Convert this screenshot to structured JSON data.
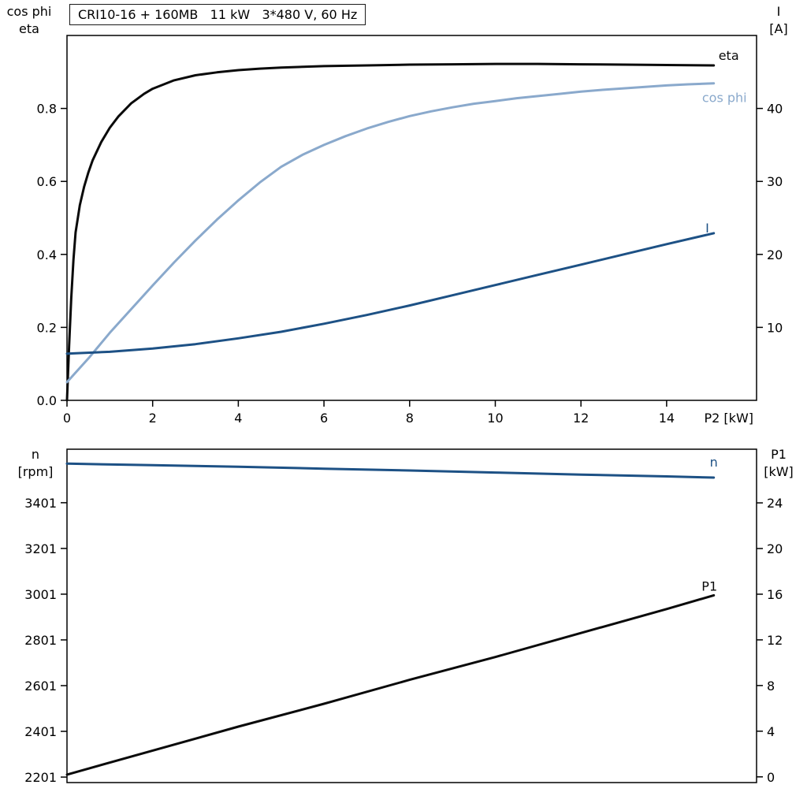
{
  "colors": {
    "background": "#ffffff",
    "axis": "#000000",
    "black": "#0a0a0a",
    "dark_blue": "#1d5185",
    "light_blue": "#8aa9cc"
  },
  "chart_data": [
    {
      "type": "line",
      "title": "CRI10-16 + 160MB   11 kW   3*480 V, 60 Hz",
      "grid": "off",
      "x_axis": {
        "label": "P2 [kW]",
        "min": 0,
        "max": 16.1,
        "ticks": [
          0,
          2,
          4,
          6,
          8,
          10,
          12,
          14
        ]
      },
      "left_axis": {
        "label_lines": [
          "cos phi",
          "eta"
        ],
        "min": 0,
        "max": 1.0,
        "decimals": 1,
        "ticks": [
          0.0,
          0.2,
          0.4,
          0.6,
          0.8
        ]
      },
      "right_axis": {
        "label_lines": [
          "I",
          "[A]"
        ],
        "min": 0,
        "max": 50,
        "ticks": [
          10,
          20,
          30,
          40
        ]
      },
      "series": [
        {
          "name": "eta",
          "label": "eta",
          "axis": "left",
          "color_key": "black",
          "label_at": [
            15.45,
            0.933
          ],
          "points": [
            [
              0,
              0
            ],
            [
              0.05,
              0.15
            ],
            [
              0.1,
              0.28
            ],
            [
              0.15,
              0.385
            ],
            [
              0.2,
              0.46
            ],
            [
              0.3,
              0.535
            ],
            [
              0.4,
              0.585
            ],
            [
              0.5,
              0.625
            ],
            [
              0.6,
              0.658
            ],
            [
              0.8,
              0.708
            ],
            [
              1,
              0.747
            ],
            [
              1.2,
              0.778
            ],
            [
              1.5,
              0.814
            ],
            [
              1.8,
              0.84
            ],
            [
              2,
              0.854
            ],
            [
              2.5,
              0.877
            ],
            [
              3,
              0.891
            ],
            [
              3.5,
              0.899
            ],
            [
              4,
              0.905
            ],
            [
              4.5,
              0.909
            ],
            [
              5,
              0.912
            ],
            [
              6,
              0.916
            ],
            [
              7,
              0.918
            ],
            [
              8,
              0.92
            ],
            [
              9,
              0.921
            ],
            [
              10,
              0.922
            ],
            [
              11,
              0.922
            ],
            [
              12,
              0.921
            ],
            [
              13,
              0.92
            ],
            [
              14,
              0.919
            ],
            [
              15.1,
              0.918
            ]
          ]
        },
        {
          "name": "cos-phi",
          "label": "cos phi",
          "axis": "left",
          "color_key": "light_blue",
          "label_at": [
            15.35,
            0.818
          ],
          "points": [
            [
              0,
              0.05
            ],
            [
              0.5,
              0.115
            ],
            [
              1,
              0.185
            ],
            [
              1.5,
              0.25
            ],
            [
              2,
              0.315
            ],
            [
              2.5,
              0.378
            ],
            [
              3,
              0.438
            ],
            [
              3.5,
              0.495
            ],
            [
              4,
              0.548
            ],
            [
              4.5,
              0.597
            ],
            [
              5,
              0.64
            ],
            [
              5.5,
              0.673
            ],
            [
              6,
              0.7
            ],
            [
              6.5,
              0.724
            ],
            [
              7,
              0.745
            ],
            [
              7.5,
              0.763
            ],
            [
              8,
              0.779
            ],
            [
              8.5,
              0.792
            ],
            [
              9,
              0.803
            ],
            [
              9.5,
              0.813
            ],
            [
              10,
              0.82
            ],
            [
              10.5,
              0.828
            ],
            [
              11,
              0.834
            ],
            [
              11.5,
              0.84
            ],
            [
              12,
              0.846
            ],
            [
              12.5,
              0.851
            ],
            [
              13,
              0.855
            ],
            [
              13.5,
              0.859
            ],
            [
              14,
              0.863
            ],
            [
              14.5,
              0.866
            ],
            [
              15.1,
              0.869
            ]
          ]
        },
        {
          "name": "current",
          "label": "I",
          "axis": "right",
          "color_key": "dark_blue",
          "label_at": [
            14.95,
            23.0
          ],
          "points": [
            [
              0,
              6.4
            ],
            [
              1,
              6.65
            ],
            [
              2,
              7.1
            ],
            [
              3,
              7.7
            ],
            [
              4,
              8.5
            ],
            [
              5,
              9.4
            ],
            [
              6,
              10.5
            ],
            [
              7,
              11.7
            ],
            [
              8,
              13
            ],
            [
              9,
              14.4
            ],
            [
              10,
              15.8
            ],
            [
              11,
              17.2
            ],
            [
              12,
              18.6
            ],
            [
              13,
              20
            ],
            [
              14,
              21.4
            ],
            [
              15.1,
              22.9
            ]
          ]
        }
      ]
    },
    {
      "type": "line",
      "title": "",
      "grid": "off",
      "x_axis": {
        "label": "",
        "min": 0,
        "max": 16.1,
        "ticks": []
      },
      "left_axis": {
        "label_lines": [
          "n",
          "[rpm]"
        ],
        "min": 2177,
        "max": 3635,
        "ticks": [
          2201,
          2401,
          2601,
          2801,
          3001,
          3201,
          3401
        ]
      },
      "right_axis": {
        "label_lines": [
          "P1",
          "[kW]"
        ],
        "min": -0.5,
        "max": 28.7,
        "ticks": [
          0,
          4,
          8,
          12,
          16,
          20,
          24
        ]
      },
      "series": [
        {
          "name": "speed",
          "label": "n",
          "axis": "left",
          "color_key": "dark_blue",
          "label_at": [
            15.1,
            3560
          ],
          "points": [
            [
              0,
              3572
            ],
            [
              2,
              3565
            ],
            [
              4,
              3558
            ],
            [
              6,
              3550
            ],
            [
              8,
              3542
            ],
            [
              10,
              3533
            ],
            [
              12,
              3524
            ],
            [
              14,
              3516
            ],
            [
              15.1,
              3511
            ]
          ]
        },
        {
          "name": "p1",
          "label": "P1",
          "axis": "right",
          "color_key": "black",
          "label_at": [
            15.0,
            16.3
          ],
          "points": [
            [
              0,
              0.2
            ],
            [
              2,
              2.3
            ],
            [
              4,
              4.4
            ],
            [
              6,
              6.4
            ],
            [
              8,
              8.5
            ],
            [
              10,
              10.5
            ],
            [
              12,
              12.6
            ],
            [
              14,
              14.7
            ],
            [
              15.1,
              15.9
            ]
          ]
        }
      ]
    }
  ]
}
